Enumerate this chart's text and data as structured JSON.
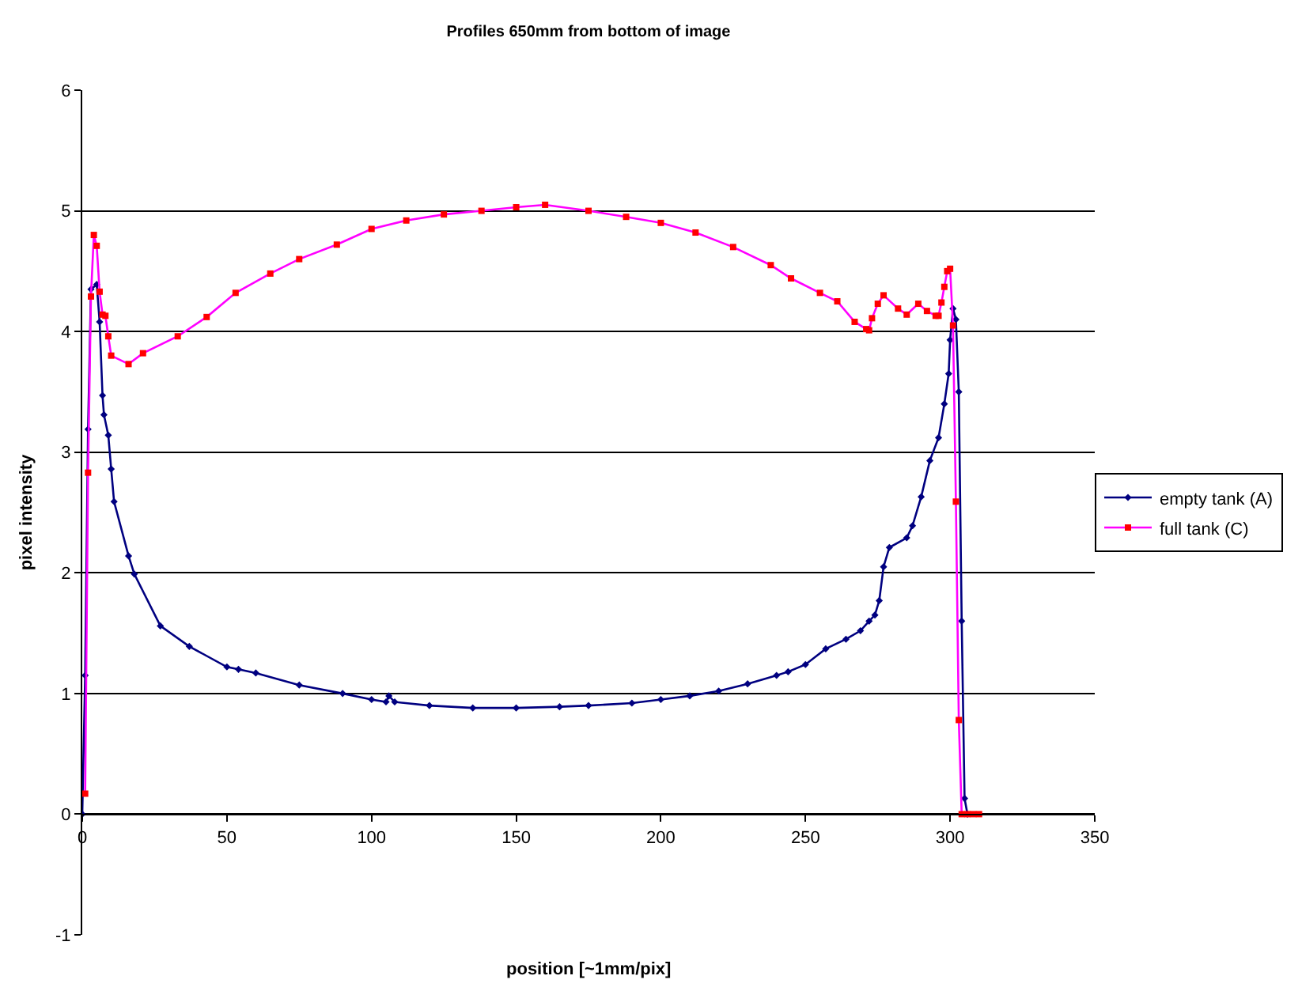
{
  "chart_data": {
    "type": "line",
    "title": "Profiles 650mm from bottom of image",
    "xlabel": "position [~1mm/pix]",
    "ylabel": "pixel intensity",
    "xlim": [
      0,
      350
    ],
    "xticks": [
      0,
      50,
      100,
      150,
      200,
      250,
      300,
      350
    ],
    "ylim": [
      -1,
      6
    ],
    "yticks": [
      -1,
      0,
      1,
      2,
      3,
      4,
      5,
      6
    ],
    "grid": "y",
    "legend": "right",
    "line_style": "solid",
    "series": [
      {
        "name": "empty tank (A)",
        "color": "#000080",
        "marker": "diamond",
        "x": [
          0,
          1,
          2,
          3,
          5,
          6,
          7,
          7.5,
          9,
          10,
          11,
          16,
          18,
          27,
          37,
          50,
          54,
          60,
          75,
          90,
          100,
          105,
          106,
          108,
          120,
          135,
          150,
          165,
          175,
          190,
          200,
          210,
          220,
          230,
          240,
          244,
          250,
          257,
          264,
          269,
          272,
          274,
          275.5,
          277,
          279,
          285,
          287,
          290,
          293,
          296,
          298,
          299.5,
          300,
          301,
          302,
          303,
          304,
          305,
          306
        ],
        "values": [
          0,
          1.15,
          3.19,
          4.35,
          4.39,
          4.08,
          3.47,
          3.31,
          3.14,
          2.86,
          2.59,
          2.14,
          1.99,
          1.56,
          1.39,
          1.22,
          1.2,
          1.17,
          1.07,
          1.0,
          0.95,
          0.93,
          0.98,
          0.93,
          0.9,
          0.88,
          0.88,
          0.89,
          0.9,
          0.92,
          0.95,
          0.98,
          1.02,
          1.08,
          1.15,
          1.18,
          1.24,
          1.37,
          1.45,
          1.52,
          1.6,
          1.65,
          1.77,
          2.05,
          2.21,
          2.29,
          2.39,
          2.63,
          2.93,
          3.12,
          3.4,
          3.65,
          3.93,
          4.19,
          4.1,
          3.5,
          1.6,
          0.13,
          0
        ]
      },
      {
        "name": "full tank (C)",
        "color": "#ff00ff",
        "marker": "square",
        "x": [
          1,
          2,
          3,
          4,
          5,
          6,
          7,
          8,
          9,
          10,
          16,
          21,
          33,
          43,
          53,
          65,
          75,
          88,
          100,
          112,
          125,
          138,
          150,
          160,
          175,
          188,
          200,
          212,
          225,
          238,
          245,
          255,
          261,
          267,
          271,
          272,
          273,
          275,
          277,
          282,
          285,
          289,
          292,
          295,
          296,
          297,
          298,
          299,
          300,
          301,
          302,
          303,
          304,
          306,
          308,
          310
        ],
        "values": [
          0.17,
          2.83,
          4.29,
          4.8,
          4.71,
          4.33,
          4.14,
          4.13,
          3.96,
          3.8,
          3.73,
          3.82,
          3.96,
          4.12,
          4.32,
          4.48,
          4.6,
          4.72,
          4.85,
          4.92,
          4.97,
          5.0,
          5.03,
          5.05,
          5.0,
          4.95,
          4.9,
          4.82,
          4.7,
          4.55,
          4.44,
          4.32,
          4.25,
          4.08,
          4.02,
          4.01,
          4.11,
          4.23,
          4.3,
          4.19,
          4.14,
          4.23,
          4.17,
          4.13,
          4.13,
          4.24,
          4.37,
          4.5,
          4.52,
          4.05,
          2.59,
          0.78,
          0,
          0,
          0,
          0
        ]
      }
    ]
  }
}
